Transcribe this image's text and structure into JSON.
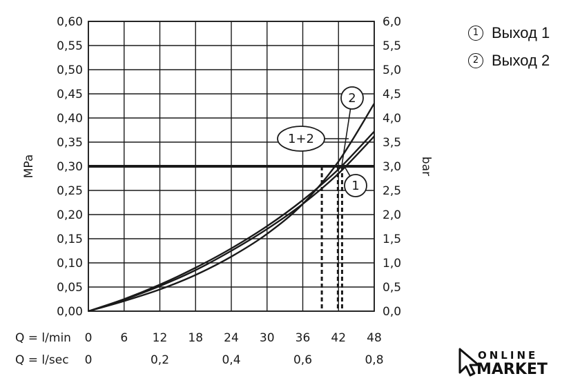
{
  "chart_data": {
    "type": "line",
    "x": [
      0,
      6,
      12,
      18,
      24,
      30,
      36,
      42,
      48
    ],
    "x_ticks_lmin": [
      "0",
      "6",
      "12",
      "18",
      "24",
      "30",
      "36",
      "42",
      "48"
    ],
    "x_ticks_lsec": [
      "0",
      "0,2",
      "0,4",
      "0,6",
      "0,8"
    ],
    "x_ticks_lsec_values": [
      0,
      0.2,
      0.4,
      0.6,
      0.8
    ],
    "x_label_lmin": "Q = l/min",
    "x_label_lsec": "Q = l/sec",
    "xlim": [
      0,
      48
    ],
    "y_left_label": "MPa",
    "y_left_ticks": [
      "0,00",
      "0,05",
      "0,10",
      "0,15",
      "0,20",
      "0,25",
      "0,30",
      "0,35",
      "0,40",
      "0,45",
      "0,50",
      "0,55",
      "0,60"
    ],
    "ylim": [
      0,
      0.6
    ],
    "y_right_label": "bar",
    "y_right_ticks": [
      "0,0",
      "0,5",
      "1,0",
      "1,5",
      "2,0",
      "2,5",
      "3,0",
      "3,5",
      "4,0",
      "4,5",
      "5,0",
      "5,5",
      "6,0"
    ],
    "series": [
      {
        "name": "1",
        "values": [
          0,
          0.024,
          0.052,
          0.085,
          0.125,
          0.17,
          0.222,
          0.285,
          0.362
        ],
        "callout": "1"
      },
      {
        "name": "2",
        "values": [
          0,
          0.021,
          0.045,
          0.075,
          0.113,
          0.16,
          0.222,
          0.31,
          0.43
        ],
        "callout": "2"
      },
      {
        "name": "1+2",
        "values": [
          0,
          0.025,
          0.055,
          0.09,
          0.13,
          0.176,
          0.23,
          0.294,
          0.372
        ],
        "callout": "1+2"
      }
    ],
    "reference_line": {
      "y": 0.3
    },
    "drop_lines_x": [
      39.2,
      41.9,
      42.6
    ],
    "grid": true
  },
  "legend": [
    {
      "marker": "1",
      "label": "Выход 1"
    },
    {
      "marker": "2",
      "label": "Выход 2"
    }
  ],
  "brand": {
    "line1": "ONLINE",
    "line2": "MARKET"
  },
  "colors": {
    "ink": "#1a1a1a",
    "background": "#ffffff"
  }
}
